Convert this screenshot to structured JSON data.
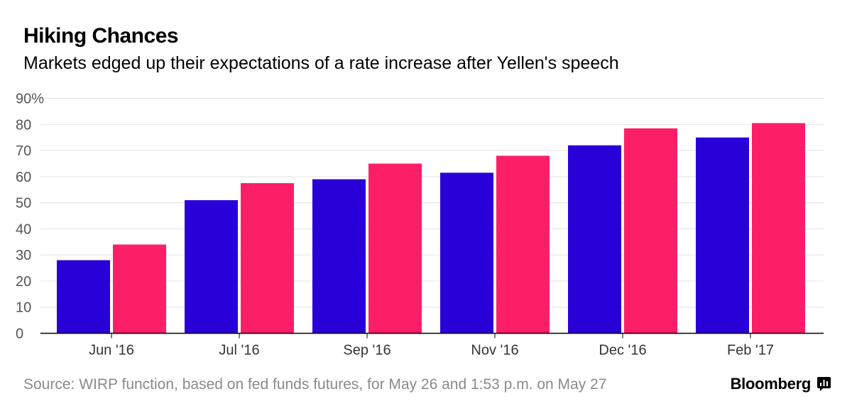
{
  "header": {
    "title": "Hiking Chances",
    "subtitle": "Markets edged up their expectations of a rate increase after Yellen's speech"
  },
  "footer": {
    "source": "Source: WIRP function, based on fed funds futures, for May 26 and 1:53 p.m. on May 27",
    "brand": "Bloomberg",
    "brand_icon": "bloomberg-terminal-icon"
  },
  "chart_data": {
    "type": "bar",
    "categories": [
      "Jun '16",
      "Jul '16",
      "Sep '16",
      "Nov '16",
      "Dec '16",
      "Feb '17"
    ],
    "series": [
      {
        "values": [
          28,
          51,
          59,
          61.5,
          72,
          75
        ],
        "color": "#2a00d8"
      },
      {
        "values": [
          34,
          57.5,
          65,
          68,
          78.5,
          80.5
        ],
        "color": "#fc1f67"
      }
    ],
    "title": "Hiking Chances",
    "subtitle": "Markets edged up their expectations of a rate increase after Yellen's speech",
    "xlabel": "",
    "ylabel": "",
    "ylim": [
      0,
      90
    ],
    "yticks": [
      0,
      10,
      20,
      30,
      40,
      50,
      60,
      70,
      80,
      90
    ],
    "ytick_labels": [
      "0",
      "10",
      "20",
      "30",
      "40",
      "50",
      "60",
      "70",
      "80",
      "90%"
    ],
    "grid": true,
    "grid_color": "#e3e3e3",
    "axis_color": "#000000",
    "tick_label_color": "#555555"
  }
}
